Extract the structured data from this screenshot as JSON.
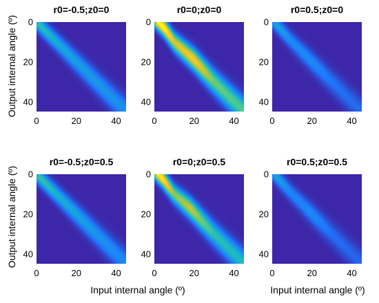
{
  "chart_data": {
    "type": "heatmap",
    "layout": "2x3 grid",
    "colormap": [
      "#3d26a8",
      "#1f79ff",
      "#15b1d3",
      "#4fcb8c",
      "#c9c236",
      "#ffcb2c",
      "#f9fb0e"
    ],
    "ylabel": "Output internal angle (º)",
    "xlabel": "Input internal angle (º)",
    "xlim": [
      0,
      45
    ],
    "ylim": [
      0,
      45
    ],
    "xticks": [
      0,
      20,
      40
    ],
    "yticks": [
      0,
      20,
      40
    ],
    "y_inverted": true,
    "intensity_scale": "shared across panels (0 = dark blue, 1 = yellow)",
    "panels": [
      {
        "title": "r0=-0.5;z0=0",
        "peak_intensity": 0.42,
        "ridge": [
          {
            "x": 1,
            "y": 1,
            "intensity": 0.42
          },
          {
            "x": 10,
            "y": 10,
            "intensity": 0.33
          },
          {
            "x": 20,
            "y": 20,
            "intensity": 0.28
          },
          {
            "x": 30,
            "y": 30,
            "intensity": 0.26
          },
          {
            "x": 40,
            "y": 40,
            "intensity": 0.24
          }
        ]
      },
      {
        "title": "r0=0;z0=0",
        "peak_intensity": 1.0,
        "ridge": [
          {
            "x": 5,
            "y": 3,
            "intensity": 1.0
          },
          {
            "x": 10,
            "y": 10,
            "intensity": 0.72
          },
          {
            "x": 20,
            "y": 19,
            "intensity": 0.82
          },
          {
            "x": 30,
            "y": 30,
            "intensity": 0.55
          },
          {
            "x": 40,
            "y": 40,
            "intensity": 0.5
          }
        ]
      },
      {
        "title": "r0=0.5;z0=0",
        "peak_intensity": 0.3,
        "ridge": [
          {
            "x": 2,
            "y": 1,
            "intensity": 0.3
          },
          {
            "x": 10,
            "y": 10,
            "intensity": 0.22
          },
          {
            "x": 20,
            "y": 20,
            "intensity": 0.22
          },
          {
            "x": 30,
            "y": 30,
            "intensity": 0.16
          },
          {
            "x": 40,
            "y": 40,
            "intensity": 0.14
          }
        ]
      },
      {
        "title": "r0=-0.5;z0=0.5",
        "peak_intensity": 0.45,
        "ridge": [
          {
            "x": 1,
            "y": 1,
            "intensity": 0.45
          },
          {
            "x": 10,
            "y": 10,
            "intensity": 0.35
          },
          {
            "x": 20,
            "y": 20,
            "intensity": 0.3
          },
          {
            "x": 30,
            "y": 30,
            "intensity": 0.25
          },
          {
            "x": 40,
            "y": 40,
            "intensity": 0.22
          }
        ]
      },
      {
        "title": "r0=0;z0=0.5",
        "peak_intensity": 0.95,
        "ridge": [
          {
            "x": 4,
            "y": 2,
            "intensity": 0.95
          },
          {
            "x": 10,
            "y": 10,
            "intensity": 0.58
          },
          {
            "x": 18,
            "y": 17,
            "intensity": 0.68
          },
          {
            "x": 30,
            "y": 30,
            "intensity": 0.42
          },
          {
            "x": 40,
            "y": 40,
            "intensity": 0.38
          }
        ]
      },
      {
        "title": "r0=0.5;z0=0.5",
        "peak_intensity": 0.3,
        "ridge": [
          {
            "x": 2,
            "y": 1,
            "intensity": 0.3
          },
          {
            "x": 10,
            "y": 10,
            "intensity": 0.2
          },
          {
            "x": 20,
            "y": 20,
            "intensity": 0.22
          },
          {
            "x": 30,
            "y": 30,
            "intensity": 0.15
          },
          {
            "x": 40,
            "y": 40,
            "intensity": 0.13
          }
        ]
      }
    ]
  }
}
